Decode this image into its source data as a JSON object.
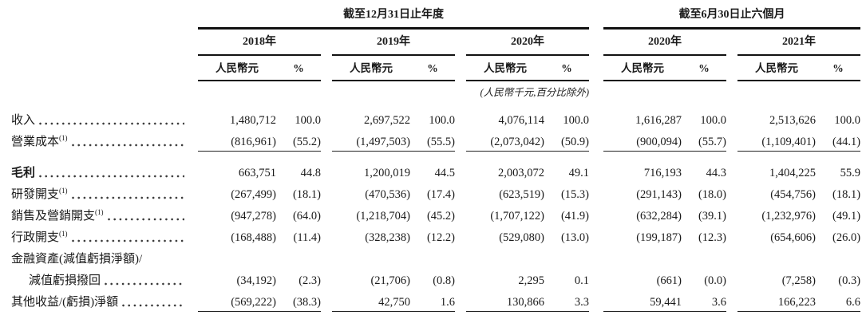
{
  "doc": {
    "groups": [
      {
        "title": "截至12月31日止年度",
        "years": [
          "2018年",
          "2019年",
          "2020年"
        ]
      },
      {
        "title": "截至6月30日止六個月",
        "years": [
          "2020年",
          "2021年"
        ]
      }
    ],
    "col_headers": {
      "currency": "人民幣元",
      "percent": "%"
    },
    "unit_note": "(人民幣千元,百分比除外)",
    "rows": [
      {
        "label": "收入",
        "first": true,
        "vals": [
          "1,480,712",
          "100.0",
          "2,697,522",
          "100.0",
          "4,076,114",
          "100.0",
          "1,616,287",
          "100.0",
          "2,513,626",
          "100.0"
        ]
      },
      {
        "label": "營業成本",
        "sup": "(1)",
        "underline": true,
        "vals": [
          "(816,961)",
          "(55.2)",
          "(1,497,503)",
          "(55.5)",
          "(2,073,042)",
          "(50.9)",
          "(900,094)",
          "(55.7)",
          "(1,109,401)",
          "(44.1)"
        ]
      },
      {
        "label": "毛利",
        "bold": true,
        "gap": true,
        "vals": [
          "663,751",
          "44.8",
          "1,200,019",
          "44.5",
          "2,003,072",
          "49.1",
          "716,193",
          "44.3",
          "1,404,225",
          "55.9"
        ]
      },
      {
        "label": "研發開支",
        "sup": "(1)",
        "vals": [
          "(267,499)",
          "(18.1)",
          "(470,536)",
          "(17.4)",
          "(623,519)",
          "(15.3)",
          "(291,143)",
          "(18.0)",
          "(454,756)",
          "(18.1)"
        ]
      },
      {
        "label": "銷售及營銷開支",
        "sup": "(1)",
        "vals": [
          "(947,278)",
          "(64.0)",
          "(1,218,704)",
          "(45.2)",
          "(1,707,122)",
          "(41.9)",
          "(632,284)",
          "(39.1)",
          "(1,232,976)",
          "(49.1)"
        ]
      },
      {
        "label": "行政開支",
        "sup": "(1)",
        "vals": [
          "(168,488)",
          "(11.4)",
          "(328,238)",
          "(12.2)",
          "(529,080)",
          "(13.0)",
          "(199,187)",
          "(12.3)",
          "(654,606)",
          "(26.0)"
        ]
      },
      {
        "label": "金融資產(減值虧損淨額)/",
        "label_only": true
      },
      {
        "label": "減值虧損撥回",
        "indent": true,
        "vals": [
          "(34,192)",
          "(2.3)",
          "(21,706)",
          "(0.8)",
          "2,295",
          "0.1",
          "(661)",
          "(0.0)",
          "(7,258)",
          "(0.3)"
        ]
      },
      {
        "label": "其他收益/(虧損)淨額",
        "underline": true,
        "vals": [
          "(569,222)",
          "(38.3)",
          "42,750",
          "1.6",
          "130,866",
          "3.3",
          "59,441",
          "3.6",
          "166,223",
          "6.6"
        ]
      }
    ]
  }
}
